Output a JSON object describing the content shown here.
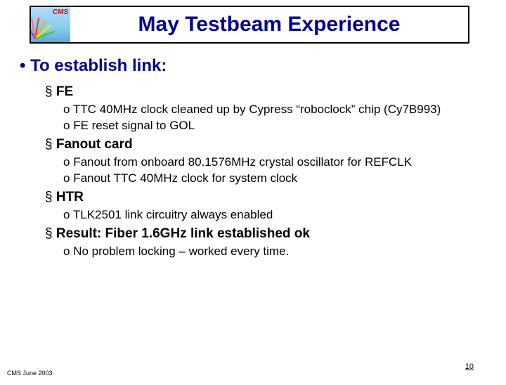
{
  "logo": {
    "label": "CMS"
  },
  "title": "May Testbeam Experience",
  "heading": "To establish link:",
  "sections": [
    {
      "label": "FE",
      "items": [
        "TTC 40MHz clock cleaned up by Cypress “roboclock” chip (Cy7B993)",
        "FE reset signal to GOL"
      ]
    },
    {
      "label": "Fanout card",
      "items": [
        "Fanout from onboard 80.1576MHz crystal oscillator for REFCLK",
        "Fanout TTC 40MHz clock for system clock"
      ]
    },
    {
      "label": "HTR",
      "items": [
        "TLK2501 link circuitry always enabled"
      ]
    },
    {
      "label": "Result:  Fiber 1.6GHz link established ok",
      "items": [
        "No problem locking – worked every time."
      ]
    }
  ],
  "footer": {
    "left": "CMS June 2003",
    "page": "10"
  },
  "colors": {
    "title_text": "#000099",
    "heading_text": "#000099",
    "body_text": "#000000",
    "border": "#000000",
    "background": "#ffffff"
  }
}
